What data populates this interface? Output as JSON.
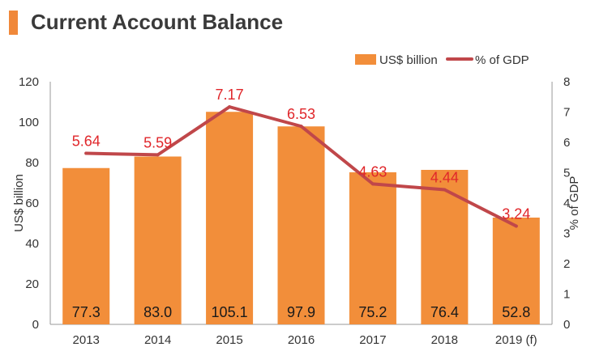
{
  "title": "Current Account Balance",
  "colors": {
    "title_accent": "#f0883a",
    "bar": "#f28e3a",
    "line": "#c0474a",
    "line_label": "#e0262a",
    "title_text": "#3a3a3a",
    "axis": "#333333"
  },
  "chart_data": {
    "type": "bar",
    "categories": [
      "2013",
      "2014",
      "2015",
      "2016",
      "2017",
      "2018",
      "2019 (f)"
    ],
    "series": [
      {
        "name": "US$ billion",
        "type": "bar",
        "axis": "left",
        "values": [
          77.3,
          83.0,
          105.1,
          97.9,
          75.2,
          76.4,
          52.8
        ],
        "labels": [
          "77.3",
          "83.0",
          "105.1",
          "97.9",
          "75.2",
          "76.4",
          "52.8"
        ]
      },
      {
        "name": "% of GDP",
        "type": "line",
        "axis": "right",
        "values": [
          5.64,
          5.59,
          7.17,
          6.53,
          4.63,
          4.44,
          3.24
        ],
        "labels": [
          "5.64",
          "5.59",
          "7.17",
          "6.53",
          "4.63",
          "4.44",
          "3.24"
        ]
      }
    ],
    "ylabel": "US$ billion",
    "ylim": [
      0,
      120
    ],
    "yticks": [
      "0",
      "20",
      "40",
      "60",
      "80",
      "100",
      "120"
    ],
    "y2label": "% of GDP",
    "y2lim": [
      0,
      8
    ],
    "y2ticks": [
      "0",
      "1",
      "2",
      "3",
      "4",
      "5",
      "6",
      "7",
      "8"
    ],
    "legend_position": "top-right",
    "grid": false
  }
}
